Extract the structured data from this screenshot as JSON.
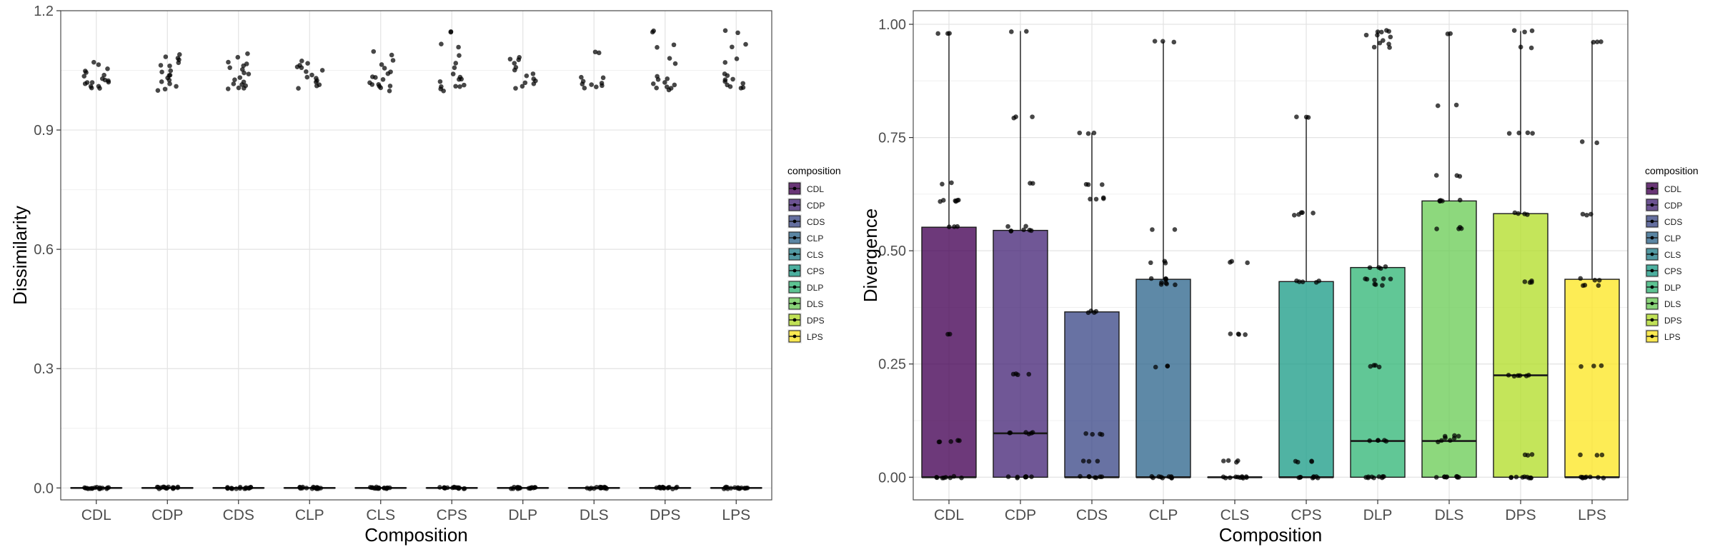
{
  "chart_data": [
    {
      "type": "boxplot",
      "xlabel": "Composition",
      "ylabel": "Dissimilarity",
      "ylim": [
        -0.03,
        1.2
      ],
      "yticks": [
        "0.0",
        "0.3",
        "0.6",
        "0.9",
        "1.2"
      ],
      "categories": [
        "CDL",
        "CDP",
        "CDS",
        "CLP",
        "CLS",
        "CPS",
        "DLP",
        "DLS",
        "DPS",
        "LPS"
      ],
      "boxes": [
        {
          "q1": 0,
          "median": 0,
          "q3": 0,
          "whisker_low": 0,
          "whisker_high": 0
        },
        {
          "q1": 0,
          "median": 0,
          "q3": 0,
          "whisker_low": 0,
          "whisker_high": 0
        },
        {
          "q1": 0,
          "median": 0,
          "q3": 0,
          "whisker_low": 0,
          "whisker_high": 0
        },
        {
          "q1": 0,
          "median": 0,
          "q3": 0,
          "whisker_low": 0,
          "whisker_high": 0
        },
        {
          "q1": 0,
          "median": 0,
          "q3": 0,
          "whisker_low": 0,
          "whisker_high": 0
        },
        {
          "q1": 0,
          "median": 0,
          "q3": 0,
          "whisker_low": 0,
          "whisker_high": 0
        },
        {
          "q1": 0,
          "median": 0,
          "q3": 0,
          "whisker_low": 0,
          "whisker_high": 0
        },
        {
          "q1": 0,
          "median": 0,
          "q3": 0,
          "whisker_low": 0,
          "whisker_high": 0
        },
        {
          "q1": 0,
          "median": 0,
          "q3": 0,
          "whisker_low": 0,
          "whisker_high": 0
        },
        {
          "q1": 0,
          "median": 0,
          "q3": 0,
          "whisker_low": 0,
          "whisker_high": 0
        }
      ],
      "points": [
        [
          0,
          0,
          0,
          0,
          0,
          0,
          0,
          0,
          0,
          0,
          0,
          0,
          0,
          0,
          0,
          0,
          1.005,
          1.008,
          1.01,
          1.012,
          1.015,
          1.018,
          1.02,
          1.022,
          1.025,
          1.028,
          1.03,
          1.035,
          1.04,
          1.045,
          1.05,
          1.055,
          1.065,
          1.068
        ],
        [
          0,
          0,
          0,
          0,
          0,
          0,
          0,
          0,
          0,
          0,
          0,
          0,
          0,
          0,
          0,
          0,
          1.0,
          1.005,
          1.01,
          1.015,
          1.02,
          1.025,
          1.03,
          1.035,
          1.04,
          1.045,
          1.05,
          1.06,
          1.065,
          1.07,
          1.075,
          1.08,
          1.085,
          1.09
        ],
        [
          0,
          0,
          0,
          0,
          0,
          0,
          0,
          0,
          0,
          0,
          0,
          0,
          0,
          0,
          0,
          0,
          1.002,
          1.005,
          1.008,
          1.01,
          1.012,
          1.015,
          1.02,
          1.025,
          1.03,
          1.04,
          1.045,
          1.05,
          1.055,
          1.06,
          1.065,
          1.07,
          1.085,
          1.09
        ],
        [
          0,
          0,
          0,
          0,
          0,
          0,
          0,
          0,
          0,
          0,
          0,
          0,
          0,
          0,
          0,
          0,
          1.005,
          1.01,
          1.015,
          1.02,
          1.025,
          1.03,
          1.035,
          1.04,
          1.045,
          1.05,
          1.055,
          1.06,
          1.065,
          1.07,
          1.075
        ],
        [
          0,
          0,
          0,
          0,
          0,
          0,
          0,
          0,
          0,
          0,
          0,
          0,
          0,
          0,
          0,
          0,
          1.0,
          1.005,
          1.008,
          1.01,
          1.012,
          1.015,
          1.02,
          1.025,
          1.03,
          1.035,
          1.04,
          1.045,
          1.055,
          1.065,
          1.075,
          1.09,
          1.095
        ],
        [
          0,
          0,
          0,
          0,
          0,
          0,
          0,
          0,
          0,
          0,
          0,
          0,
          0,
          0,
          0,
          0,
          1.0,
          1.005,
          1.008,
          1.01,
          1.012,
          1.015,
          1.02,
          1.025,
          1.03,
          1.035,
          1.04,
          1.055,
          1.07,
          1.085,
          1.11,
          1.115,
          1.145,
          1.148
        ],
        [
          0,
          0,
          0,
          0,
          0,
          0,
          0,
          0,
          0,
          0,
          0,
          0,
          0,
          0,
          0,
          0,
          1.005,
          1.01,
          1.015,
          1.02,
          1.025,
          1.03,
          1.035,
          1.04,
          1.05,
          1.06,
          1.07,
          1.075,
          1.08,
          1.085
        ],
        [
          0,
          0,
          0,
          0,
          0,
          0,
          0,
          0,
          0,
          0,
          0,
          0,
          0,
          0,
          0,
          0,
          1.005,
          1.008,
          1.01,
          1.012,
          1.015,
          1.02,
          1.025,
          1.03,
          1.035,
          1.095,
          1.098
        ],
        [
          0,
          0,
          0,
          0,
          0,
          0,
          0,
          0,
          0,
          0,
          0,
          0,
          0,
          0,
          0,
          0,
          1.002,
          1.005,
          1.008,
          1.01,
          1.012,
          1.015,
          1.02,
          1.025,
          1.03,
          1.035,
          1.065,
          1.08,
          1.11,
          1.115,
          1.145,
          1.148
        ],
        [
          0,
          0,
          0,
          0,
          0,
          0,
          0,
          0,
          0,
          0,
          0,
          0,
          0,
          0,
          0,
          0,
          1.005,
          1.008,
          1.01,
          1.012,
          1.015,
          1.02,
          1.025,
          1.03,
          1.035,
          1.04,
          1.07,
          1.08,
          1.11,
          1.115,
          1.145,
          1.148
        ]
      ],
      "grid": true
    },
    {
      "type": "boxplot",
      "xlabel": "Composition",
      "ylabel": "Divergence",
      "ylim": [
        -0.05,
        1.03
      ],
      "yticks": [
        "0.00",
        "0.25",
        "0.50",
        "0.75",
        "1.00"
      ],
      "categories": [
        "CDL",
        "CDP",
        "CDS",
        "CLP",
        "CLS",
        "CPS",
        "DLP",
        "DLS",
        "DPS",
        "LPS"
      ],
      "boxes": [
        {
          "q1": 0,
          "median": 0,
          "q3": 0.552,
          "whisker_low": 0,
          "whisker_high": 0.978
        },
        {
          "q1": 0,
          "median": 0.097,
          "q3": 0.545,
          "whisker_low": 0,
          "whisker_high": 0.985
        },
        {
          "q1": 0,
          "median": 0,
          "q3": 0.365,
          "whisker_low": 0,
          "whisker_high": 0.76
        },
        {
          "q1": 0,
          "median": 0,
          "q3": 0.437,
          "whisker_low": 0,
          "whisker_high": 0.962
        },
        {
          "q1": 0,
          "median": 0,
          "q3": 0,
          "whisker_low": 0,
          "whisker_high": 0
        },
        {
          "q1": 0,
          "median": 0,
          "q3": 0.432,
          "whisker_low": 0,
          "whisker_high": 0.795
        },
        {
          "q1": 0,
          "median": 0.08,
          "q3": 0.463,
          "whisker_low": 0,
          "whisker_high": 0.985
        },
        {
          "q1": 0,
          "median": 0.08,
          "q3": 0.61,
          "whisker_low": 0,
          "whisker_high": 0.978
        },
        {
          "q1": 0,
          "median": 0.225,
          "q3": 0.582,
          "whisker_low": 0,
          "whisker_high": 0.985
        },
        {
          "q1": 0,
          "median": 0,
          "q3": 0.437,
          "whisker_low": 0,
          "whisker_high": 0.962
        }
      ],
      "points": [
        [
          0,
          0,
          0,
          0,
          0,
          0,
          0,
          0,
          0.08,
          0.08,
          0.08,
          0.08,
          0.08,
          0.315,
          0.315,
          0.552,
          0.552,
          0.552,
          0.61,
          0.61,
          0.61,
          0.61,
          0.61,
          0.61,
          0.648,
          0.648,
          0.978,
          0.978,
          0.978
        ],
        [
          0,
          0,
          0,
          0,
          0,
          0,
          0,
          0,
          0.097,
          0.097,
          0.097,
          0.097,
          0.097,
          0.097,
          0.228,
          0.228,
          0.228,
          0.228,
          0.545,
          0.545,
          0.545,
          0.545,
          0.545,
          0.555,
          0.555,
          0.648,
          0.648,
          0.795,
          0.795,
          0.795,
          0.985,
          0.985
        ],
        [
          0,
          0,
          0,
          0,
          0,
          0,
          0,
          0.035,
          0.035,
          0.035,
          0.095,
          0.095,
          0.095,
          0.095,
          0.365,
          0.365,
          0.365,
          0.365,
          0.615,
          0.615,
          0.615,
          0.615,
          0.648,
          0.648,
          0.648,
          0.76,
          0.76,
          0.76
        ],
        [
          0,
          0,
          0,
          0,
          0,
          0,
          0,
          0,
          0,
          0.245,
          0.245,
          0.245,
          0.425,
          0.425,
          0.425,
          0.43,
          0.43,
          0.437,
          0.437,
          0.437,
          0.437,
          0.475,
          0.475,
          0.475,
          0.545,
          0.545,
          0.962,
          0.962,
          0.962
        ],
        [
          0,
          0,
          0,
          0,
          0,
          0,
          0,
          0,
          0,
          0,
          0,
          0.035,
          0.035,
          0.035,
          0.035,
          0.315,
          0.315,
          0.315,
          0.315,
          0.475,
          0.475,
          0.475
        ],
        [
          0,
          0,
          0,
          0,
          0,
          0,
          0,
          0,
          0.035,
          0.035,
          0.035,
          0.035,
          0.432,
          0.432,
          0.432,
          0.432,
          0.432,
          0.58,
          0.58,
          0.585,
          0.585,
          0.585,
          0.795,
          0.795,
          0.795
        ],
        [
          0,
          0,
          0,
          0,
          0,
          0,
          0,
          0,
          0,
          0.08,
          0.08,
          0.08,
          0.08,
          0.08,
          0.245,
          0.245,
          0.245,
          0.245,
          0.425,
          0.425,
          0.425,
          0.437,
          0.437,
          0.437,
          0.437,
          0.437,
          0.463,
          0.463,
          0.463,
          0.463,
          0.95,
          0.95,
          0.955,
          0.96,
          0.965,
          0.97,
          0.975,
          0.978,
          0.982,
          0.985,
          0.985,
          0.985
        ],
        [
          0,
          0,
          0,
          0,
          0,
          0,
          0,
          0,
          0,
          0.08,
          0.08,
          0.08,
          0.085,
          0.085,
          0.09,
          0.09,
          0.09,
          0.55,
          0.55,
          0.55,
          0.55,
          0.61,
          0.61,
          0.61,
          0.61,
          0.61,
          0.665,
          0.665,
          0.665,
          0.82,
          0.82,
          0.978,
          0.978
        ],
        [
          0,
          0,
          0,
          0,
          0,
          0,
          0,
          0,
          0,
          0.05,
          0.05,
          0.05,
          0.225,
          0.225,
          0.225,
          0.225,
          0.225,
          0.225,
          0.432,
          0.432,
          0.432,
          0.432,
          0.582,
          0.582,
          0.582,
          0.582,
          0.76,
          0.76,
          0.76,
          0.76,
          0.95,
          0.95,
          0.985,
          0.985,
          0.985
        ],
        [
          0,
          0,
          0,
          0,
          0,
          0,
          0,
          0,
          0.05,
          0.05,
          0.05,
          0.245,
          0.245,
          0.245,
          0.425,
          0.425,
          0.425,
          0.437,
          0.437,
          0.437,
          0.58,
          0.58,
          0.58,
          0.74,
          0.74,
          0.962,
          0.962,
          0.962
        ]
      ],
      "grid": true
    }
  ],
  "legend": {
    "title": "composition",
    "entries": [
      "CDL",
      "CDP",
      "CDS",
      "CLP",
      "CLS",
      "CPS",
      "DLP",
      "DLS",
      "DPS",
      "LPS"
    ],
    "colors": [
      "#440154",
      "#482878",
      "#3E4A89",
      "#31688E",
      "#26828E",
      "#1F9E89",
      "#35B779",
      "#6DCD59",
      "#B4DE2C",
      "#FDE725"
    ],
    "placement": "right"
  }
}
